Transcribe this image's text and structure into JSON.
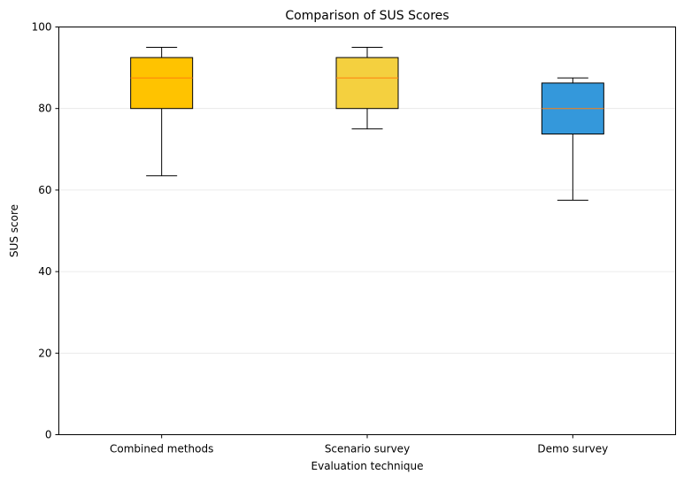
{
  "chart_data": {
    "type": "boxplot",
    "title": "Comparison of SUS Scores",
    "xlabel": "Evaluation technique",
    "ylabel": "SUS score",
    "ylim": [
      0,
      100
    ],
    "yticks": [
      0,
      20,
      40,
      60,
      80,
      100
    ],
    "grid": "horizontal",
    "categories": [
      "Combined methods",
      "Scenario survey",
      "Demo survey"
    ],
    "boxes": [
      {
        "whisker_low": 63.5,
        "q1": 80,
        "median": 87.5,
        "q3": 92.5,
        "whisker_high": 95,
        "color": "#FFC300"
      },
      {
        "whisker_low": 75,
        "q1": 80,
        "median": 87.5,
        "q3": 92.5,
        "whisker_high": 95,
        "color": "#F4D03F"
      },
      {
        "whisker_low": 57.5,
        "q1": 73.75,
        "median": 80,
        "q3": 86.25,
        "whisker_high": 87.5,
        "color": "#3498DB"
      }
    ],
    "median_color": "#FF7F0E"
  }
}
